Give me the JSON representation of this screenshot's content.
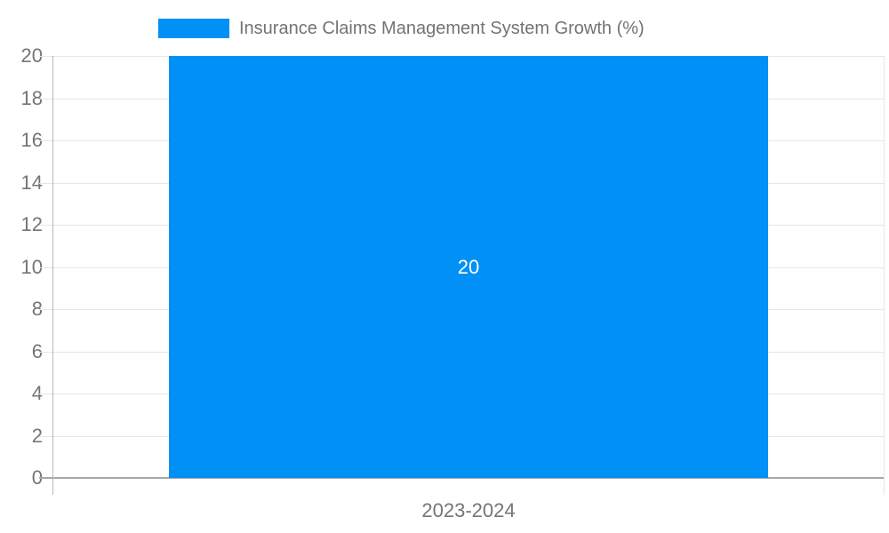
{
  "legend": {
    "label": "Insurance Claims Management System Growth (%)"
  },
  "chart_data": {
    "type": "bar",
    "title": "Insurance Claims Management System Growth (%)",
    "categories": [
      "2023-2024"
    ],
    "series": [
      {
        "name": "Insurance Claims Management System Growth (%)",
        "values": [
          20
        ]
      }
    ],
    "values": [
      20
    ],
    "bar_value_labels": [
      "20"
    ],
    "xlabel": "",
    "ylabel": "",
    "ylim": [
      0,
      20
    ],
    "ytick_step": 2,
    "yticks": [
      0,
      2,
      4,
      6,
      8,
      10,
      12,
      14,
      16,
      18,
      20
    ],
    "grid": true,
    "legend_position": "top",
    "bar_width_fraction": 0.72
  },
  "colors": {
    "bar": "#0190f5",
    "bar_label_text": "#ffffff",
    "tick_text": "#757575",
    "legend_text": "#737373",
    "gridline": "#e6e6e6",
    "baseline": "#a6a6a6",
    "y_axis_line": "#b8b8b8",
    "background": "#ffffff"
  }
}
